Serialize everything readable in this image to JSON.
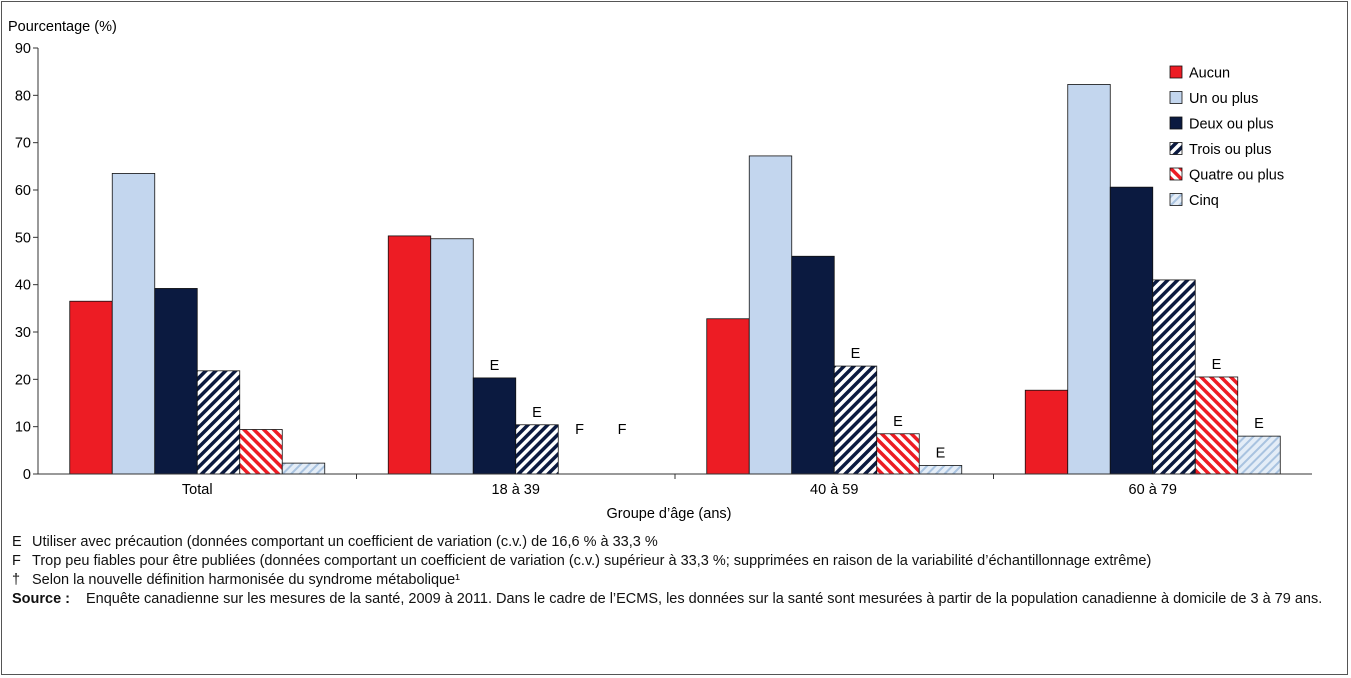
{
  "chart_data": {
    "type": "bar",
    "ylabel": "Pourcentage (%)",
    "xlabel": "Groupe d’âge (ans)",
    "ylim": [
      0,
      90
    ],
    "yticks": [
      0,
      10,
      20,
      30,
      40,
      50,
      60,
      70,
      80,
      90
    ],
    "categories": [
      "Total",
      "18 à 39",
      "40 à 59",
      "60 à 79"
    ],
    "legend_position": "top-right",
    "series": [
      {
        "name": "Aucun",
        "color": "#ed1c24",
        "pattern": "solid",
        "values": [
          36.5,
          50.3,
          32.8,
          17.7
        ],
        "flags": [
          "",
          "",
          "",
          ""
        ]
      },
      {
        "name": "Un ou plus",
        "color": "#c3d6ee",
        "pattern": "solid",
        "values": [
          63.5,
          49.7,
          67.2,
          82.3
        ],
        "flags": [
          "",
          "",
          "",
          ""
        ]
      },
      {
        "name": "Deux ou plus",
        "color": "#0b1a40",
        "pattern": "solid",
        "values": [
          39.2,
          20.3,
          46.0,
          60.6
        ],
        "flags": [
          "",
          "E",
          "",
          ""
        ]
      },
      {
        "name": "Trois ou plus",
        "color": "#0b1a40",
        "pattern": "hatch",
        "values": [
          21.8,
          10.4,
          22.8,
          41.0
        ],
        "flags": [
          "",
          "E",
          "E",
          ""
        ]
      },
      {
        "name": "Quatre ou plus",
        "color": "#ed1c24",
        "pattern": "hatch",
        "values": [
          9.4,
          null,
          8.5,
          20.5
        ],
        "flags": [
          "",
          "F",
          "E",
          "E"
        ]
      },
      {
        "name": "Cinq",
        "color": "#a9c3e0",
        "pattern": "hatch-light",
        "values": [
          2.3,
          null,
          1.8,
          8.0
        ],
        "flags": [
          "",
          "F",
          "E",
          "E"
        ]
      }
    ]
  },
  "notes": [
    {
      "symbol": "E",
      "text": "Utiliser avec précaution (données comportant un coefficient de variation (c.v.) de 16,6 % à 33,3 %"
    },
    {
      "symbol": "F",
      "text": "Trop peu fiables pour être publiées (données comportant un coefficient de variation (c.v.) supérieur à 33,3 %; supprimées en raison de la variabilité d’échantillonnage extrême)"
    },
    {
      "symbol": "†",
      "text": "Selon la nouvelle définition harmonisée du syndrome métabolique¹"
    }
  ],
  "source": {
    "label": "Source :",
    "text": "Enquête canadienne sur les mesures de la santé, 2009 à 2011. Dans le cadre de l’ECMS, les données sur la santé sont mesurées à partir de la population canadienne à domicile de 3 à 79 ans."
  }
}
